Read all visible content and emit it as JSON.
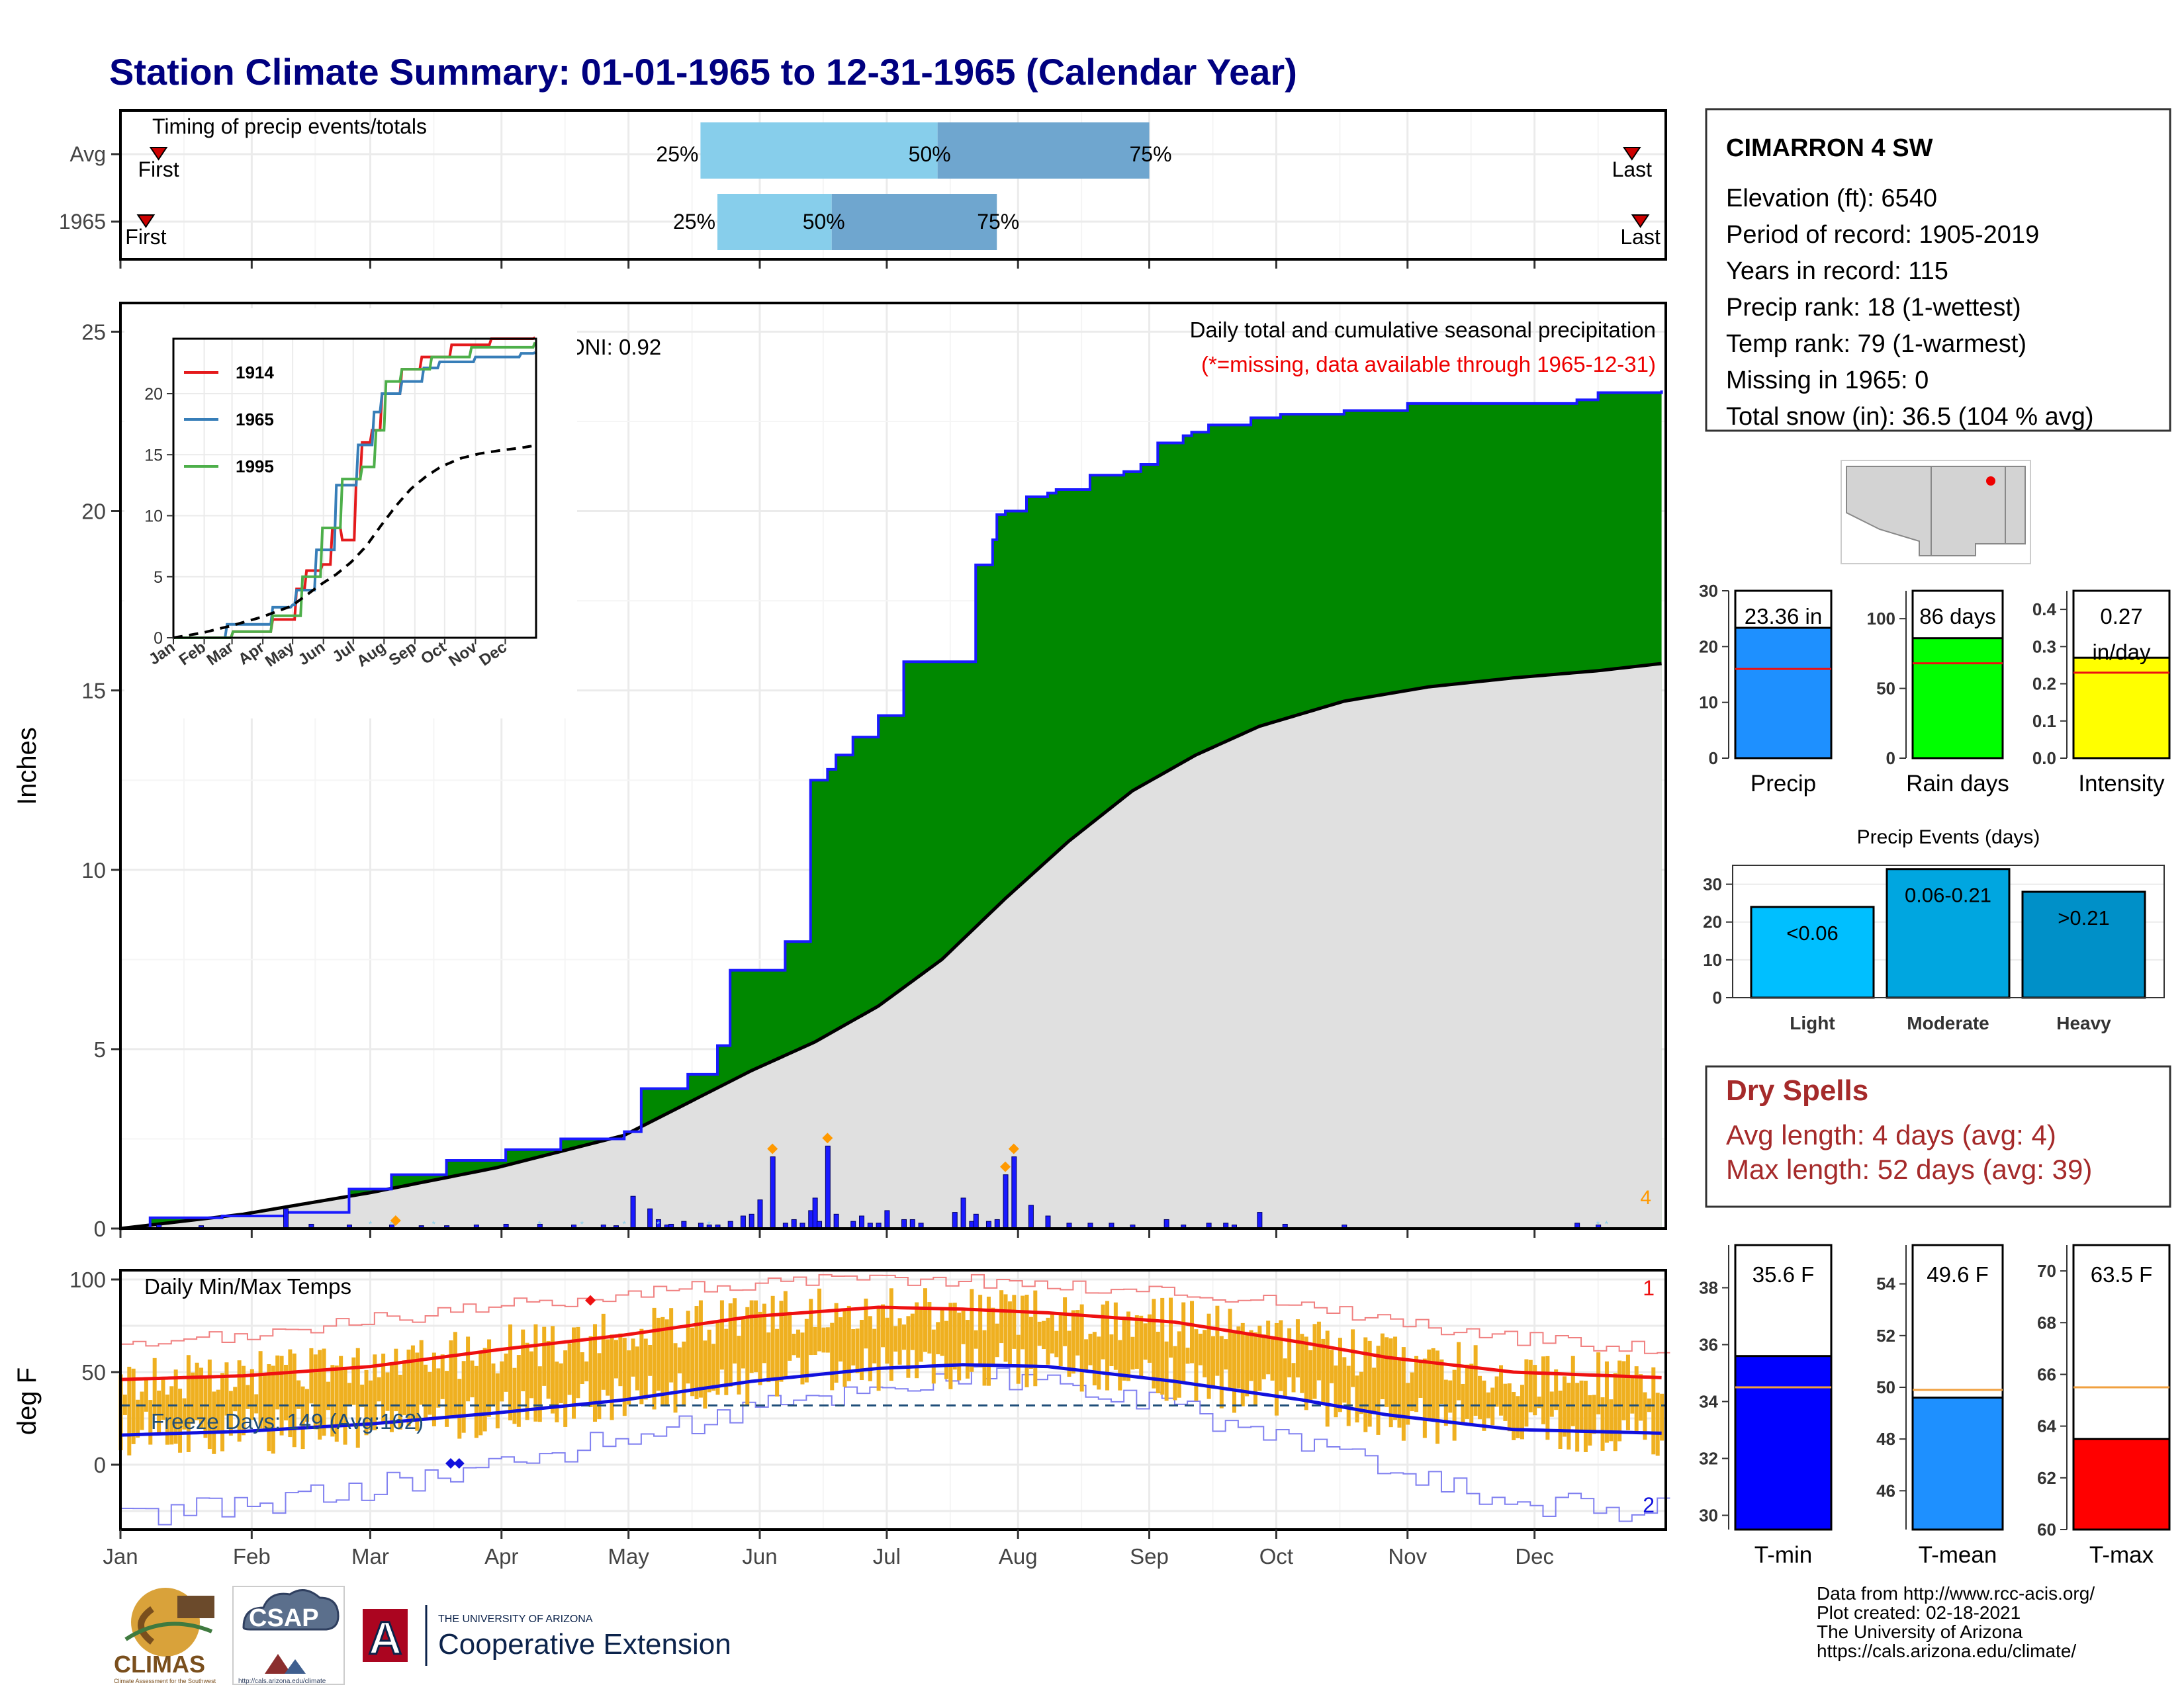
{
  "title": "Station Climate Summary: 01-01-1965 to 12-31-1965 (Calendar Year)",
  "station": {
    "name": "CIMARRON 4 SW",
    "lines": [
      "Elevation (ft): 6540",
      "Period of record: 1905-2019",
      "Years in record: 115",
      "Precip rank: 18 (1-wettest)",
      "Temp rank: 79 (1-warmest)",
      "Missing in 1965: 0",
      "Total snow (in): 36.5 (104 % avg)"
    ]
  },
  "colors": {
    "navy_title": "#000080",
    "cum_fill": "#008800",
    "cum_line": "#1a1aff",
    "avg_fill": "#e0e0e0",
    "daily_bar": "#1a1aff",
    "temp_bar": "#efb020",
    "max_line": "#ee1111",
    "min_line": "#1111dd",
    "light_blue": "#87ceeb",
    "mid_blue": "#6fa6cf",
    "dry_spells": "#a52a2a",
    "missing_red": "#ee0000",
    "oni_orange": "#ff9900"
  },
  "timing": {
    "label": "Timing of precip events/totals",
    "rows": [
      {
        "name": "Avg",
        "first_day": 10,
        "p25": 138,
        "p50": 194,
        "p75": 244,
        "last_day": 358
      },
      {
        "name": "1965",
        "first_day": 7,
        "p25": 142,
        "p50": 169,
        "p75": 208,
        "last_day": 360
      }
    ],
    "first_label": "First",
    "last_label": "Last",
    "p25_label": "25%",
    "p50_label": "50%",
    "p75_label": "75%"
  },
  "precip_panel": {
    "ylabel": "Inches",
    "title": "Daily total and cumulative seasonal precipitation",
    "subtitle": "(*=missing, data available through 1965-12-31)",
    "oni": "ONI: 0.92",
    "corner_count": "4",
    "yticks": [
      "0",
      "5",
      "10",
      "15",
      "20",
      "25"
    ]
  },
  "inset": {
    "yticks": [
      "0",
      "5",
      "10",
      "15",
      "20"
    ],
    "months": [
      "Jan",
      "Feb",
      "Mar",
      "Apr",
      "May",
      "Jun",
      "Jul",
      "Aug",
      "Sep",
      "Oct",
      "Nov",
      "Dec"
    ],
    "legend": [
      "1914",
      "1965",
      "1995"
    ],
    "legend_colors": [
      "#e41a1c",
      "#377eb8",
      "#4daf4a"
    ]
  },
  "temp_panel": {
    "ylabel": "deg F",
    "title": "Daily Min/Max Temps",
    "freeze": "Freeze Days: 149 (Avg:162)",
    "count_max": "1",
    "count_min": "2",
    "yticks": [
      "0",
      "50",
      "100"
    ]
  },
  "months": [
    "Jan",
    "Feb",
    "Mar",
    "Apr",
    "May",
    "Jun",
    "Jul",
    "Aug",
    "Sep",
    "Oct",
    "Nov",
    "Dec"
  ],
  "bars_precip": [
    {
      "label": "23.36 in",
      "axis_label": "Precip",
      "value": 23.36,
      "avg": 16.0,
      "max": 30,
      "ticks": [
        "0",
        "10",
        "20",
        "30"
      ],
      "color": "#1e90ff"
    },
    {
      "label": "86 days",
      "axis_label": "Rain days",
      "value": 86,
      "avg": 68,
      "max": 120,
      "ticks": [
        "0",
        "50",
        "100"
      ],
      "color": "#00ff00"
    },
    {
      "label": "0.27",
      "label2": "in/day",
      "axis_label": "Intensity",
      "value": 0.27,
      "avg": 0.23,
      "max": 0.45,
      "ticks": [
        "0.0",
        "0.1",
        "0.2",
        "0.3",
        "0.4"
      ],
      "color": "#ffff00"
    }
  ],
  "precip_events": {
    "title": "Precip Events (days)",
    "cats": [
      "Light",
      "Moderate",
      "Heavy"
    ],
    "labels": [
      "<0.06",
      "0.06-0.21",
      ">0.21"
    ],
    "values": [
      24,
      34,
      28
    ],
    "colors": [
      "#00bfff",
      "#00a6e0",
      "#0090c8"
    ],
    "ticks": [
      "0",
      "10",
      "20",
      "30"
    ]
  },
  "dry_spells": {
    "title": "Dry Spells",
    "avg_line": "Avg length: 4 days (avg: 4)",
    "max_line": "Max length: 52 days (avg: 39)"
  },
  "bars_temp": [
    {
      "label": "35.6 F",
      "axis_label": "T-min",
      "value": 35.6,
      "avg": 34.5,
      "min": 29.5,
      "max": 39.5,
      "ticks": [
        "30",
        "32",
        "34",
        "36",
        "38"
      ],
      "color": "#0000ff"
    },
    {
      "label": "49.6 F",
      "axis_label": "T-mean",
      "value": 49.6,
      "avg": 49.9,
      "min": 44.5,
      "max": 55.5,
      "ticks": [
        "46",
        "48",
        "50",
        "52",
        "54"
      ],
      "color": "#1e90ff"
    },
    {
      "label": "63.5 F",
      "axis_label": "T-max",
      "value": 63.5,
      "avg": 65.5,
      "min": 60,
      "max": 71,
      "ticks": [
        "60",
        "62",
        "64",
        "66",
        "68",
        "70"
      ],
      "color": "#ff0000"
    }
  ],
  "footer": {
    "lines": [
      "Data from http://www.rcc-acis.org/",
      "Plot created: 02-18-2021",
      "The University of Arizona",
      "https://cals.arizona.edu/climate/"
    ],
    "climas": "CLIMAS",
    "climas_sub": "Climate Assessment for the Southwest",
    "csap": "CSAP",
    "csap_sub": "http://cals.arizona.edu/climate",
    "ua_small": "THE UNIVERSITY OF ARIZONA",
    "ua_big": "Cooperative Extension",
    "ua_letter": "A"
  },
  "chart_data": [
    {
      "type": "area",
      "title": "Daily total and cumulative seasonal precipitation",
      "ylabel": "Inches",
      "ylim": [
        0,
        25.8
      ],
      "xlim_day_of_year": [
        1,
        365
      ],
      "series": [
        {
          "name": "cumulative 1965",
          "x": [
            1,
            8,
            25,
            40,
            55,
            65,
            78,
            92,
            105,
            120,
            124,
            128,
            135,
            142,
            145,
            150,
            158,
            162,
            164,
            168,
            170,
            174,
            180,
            186,
            198,
            203,
            207,
            208,
            210,
            215,
            220,
            222,
            230,
            238,
            242,
            246,
            252,
            254,
            258,
            262,
            268,
            275,
            290,
            305,
            320,
            340,
            345,
            350,
            365
          ],
          "y": [
            0.0,
            0.3,
            0.35,
            0.45,
            1.1,
            1.5,
            1.9,
            2.2,
            2.5,
            2.7,
            3.9,
            3.9,
            4.3,
            5.1,
            7.2,
            7.2,
            8.0,
            8.0,
            12.5,
            12.8,
            13.2,
            13.7,
            14.3,
            15.8,
            15.8,
            18.5,
            19.2,
            19.9,
            20.0,
            20.4,
            20.5,
            20.6,
            21.0,
            21.1,
            21.3,
            21.9,
            22.1,
            22.2,
            22.4,
            22.4,
            22.6,
            22.7,
            22.8,
            23.0,
            23.0,
            23.0,
            23.1,
            23.3,
            23.36
          ]
        },
        {
          "name": "average cumulative",
          "x": [
            1,
            30,
            60,
            90,
            120,
            135,
            150,
            165,
            180,
            195,
            210,
            225,
            240,
            255,
            270,
            290,
            310,
            330,
            350,
            365
          ],
          "y": [
            0,
            0.4,
            1.0,
            1.7,
            2.6,
            3.5,
            4.4,
            5.2,
            6.2,
            7.5,
            9.2,
            10.8,
            12.2,
            13.2,
            14.0,
            14.7,
            15.1,
            15.35,
            15.55,
            15.75
          ]
        }
      ],
      "daily_precip": {
        "x": [
          10,
          20,
          40,
          46,
          55,
          65,
          72,
          78,
          85,
          92,
          100,
          108,
          115,
          118,
          122,
          126,
          128,
          130,
          131,
          134,
          138,
          140,
          142,
          145,
          148,
          150,
          152,
          155,
          158,
          160,
          162,
          164,
          165,
          166,
          168,
          170,
          174,
          176,
          178,
          180,
          182,
          186,
          188,
          190,
          198,
          200,
          202,
          203,
          206,
          208,
          210,
          212,
          216,
          220,
          225,
          230,
          235,
          240,
          248,
          252,
          258,
          262,
          264,
          270,
          276,
          290,
          345,
          350
        ],
        "y": [
          0.1,
          0.08,
          0.55,
          0.12,
          0.1,
          0.1,
          0.08,
          0.08,
          0.1,
          0.12,
          0.12,
          0.1,
          0.1,
          0.08,
          0.9,
          0.55,
          0.25,
          0.1,
          0.12,
          0.2,
          0.15,
          0.1,
          0.1,
          0.2,
          0.35,
          0.4,
          0.8,
          2.0,
          0.15,
          0.25,
          0.15,
          0.5,
          0.85,
          0.2,
          2.3,
          0.4,
          0.2,
          0.35,
          0.15,
          0.15,
          0.5,
          0.25,
          0.25,
          0.15,
          0.45,
          0.85,
          0.2,
          0.4,
          0.2,
          0.25,
          1.5,
          2.0,
          0.65,
          0.35,
          0.15,
          0.15,
          0.15,
          0.1,
          0.25,
          0.1,
          0.15,
          0.15,
          0.1,
          0.45,
          0.12,
          0.1,
          0.15,
          0.1
        ]
      }
    },
    {
      "type": "line",
      "title": "",
      "legend": [
        "1914",
        "1965",
        "1995"
      ],
      "ylim": [
        0,
        24.5
      ],
      "months": [
        "Jan",
        "Feb",
        "Mar",
        "Apr",
        "May",
        "Jun",
        "Jul",
        "Aug",
        "Sep",
        "Oct",
        "Nov",
        "Dec"
      ],
      "series": [
        {
          "name": "1914",
          "x": [
            1,
            60,
            100,
            125,
            135,
            150,
            160,
            170,
            185,
            190,
            200,
            210,
            230,
            250,
            280,
            320,
            365
          ],
          "y": [
            0,
            0.5,
            1.5,
            4,
            5.5,
            6,
            9,
            8,
            13,
            16,
            17,
            20,
            22,
            23,
            24,
            24.5,
            24.6
          ]
        },
        {
          "name": "1965",
          "x": [
            1,
            55,
            100,
            120,
            124,
            145,
            164,
            186,
            203,
            210,
            230,
            252,
            268,
            305,
            350,
            365
          ],
          "y": [
            0,
            1.1,
            2.5,
            2.7,
            3.9,
            7.2,
            12.5,
            15.8,
            18.5,
            20.0,
            21.0,
            22.1,
            22.6,
            23.0,
            23.3,
            23.36
          ]
        },
        {
          "name": "1995",
          "x": [
            1,
            60,
            100,
            130,
            150,
            170,
            190,
            205,
            215,
            230,
            260,
            300,
            365
          ],
          "y": [
            0,
            0.5,
            1.8,
            5,
            9,
            13,
            14,
            17,
            21,
            22,
            23,
            23.8,
            24.2
          ]
        },
        {
          "name": "average",
          "x": [
            1,
            30,
            60,
            90,
            120,
            135,
            150,
            165,
            180,
            195,
            210,
            225,
            240,
            255,
            270,
            290,
            310,
            330,
            350,
            365
          ],
          "y": [
            0,
            0.4,
            1.0,
            1.7,
            2.6,
            3.5,
            4.4,
            5.2,
            6.2,
            7.5,
            9.2,
            10.8,
            12.2,
            13.2,
            14.0,
            14.7,
            15.1,
            15.35,
            15.55,
            15.75
          ]
        }
      ]
    },
    {
      "type": "line",
      "title": "Daily Min/Max Temps",
      "ylabel": "deg F",
      "ylim": [
        -35,
        105
      ],
      "series": [
        {
          "name": "avg max",
          "x": [
            1,
            30,
            60,
            90,
            120,
            150,
            180,
            200,
            220,
            250,
            280,
            300,
            330,
            365
          ],
          "y": [
            46,
            48,
            53,
            62,
            70,
            80,
            85,
            84,
            82,
            77,
            66,
            58,
            50,
            47
          ]
        },
        {
          "name": "avg min",
          "x": [
            1,
            30,
            60,
            90,
            120,
            150,
            180,
            200,
            220,
            250,
            280,
            300,
            330,
            365
          ],
          "y": [
            16,
            18,
            22,
            28,
            35,
            45,
            52,
            54,
            53,
            45,
            35,
            27,
            19,
            17
          ]
        },
        {
          "name": "record max",
          "x": [
            1,
            30,
            60,
            90,
            120,
            150,
            180,
            200,
            220,
            250,
            280,
            300,
            330,
            365
          ],
          "y": [
            62,
            70,
            78,
            85,
            93,
            98,
            100,
            100,
            97,
            93,
            87,
            78,
            68,
            63
          ]
        },
        {
          "name": "record min",
          "x": [
            1,
            30,
            60,
            90,
            120,
            150,
            180,
            200,
            220,
            250,
            280,
            300,
            330,
            365
          ],
          "y": [
            -28,
            -22,
            -12,
            0,
            15,
            30,
            42,
            48,
            44,
            30,
            12,
            -5,
            -20,
            -25
          ]
        }
      ],
      "freeze_threshold": 32
    },
    {
      "type": "bar",
      "categories": [
        "Precip",
        "Rain days",
        "Intensity"
      ],
      "values": [
        23.36,
        86,
        0.27
      ]
    },
    {
      "type": "bar",
      "title": "Precip Events (days)",
      "categories": [
        "Light",
        "Moderate",
        "Heavy"
      ],
      "values": [
        24,
        34,
        28
      ]
    },
    {
      "type": "bar",
      "categories": [
        "T-min",
        "T-mean",
        "T-max"
      ],
      "values": [
        35.6,
        49.6,
        63.5
      ]
    }
  ]
}
